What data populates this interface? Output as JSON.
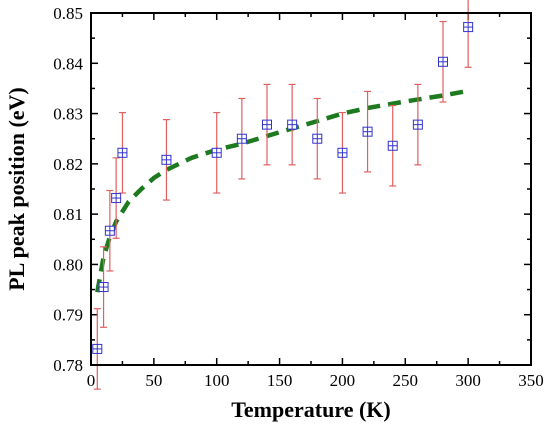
{
  "chart_data": {
    "type": "scatter",
    "title": "",
    "xlabel": "Temperature (K)",
    "ylabel": "PL peak position (eV)",
    "xlim": [
      0,
      350
    ],
    "ylim": [
      0.78,
      0.85
    ],
    "xticks": [
      "0",
      "50",
      "100",
      "150",
      "200",
      "250",
      "300",
      "350"
    ],
    "yticks": [
      "0.78",
      "0.79",
      "0.80",
      "0.81",
      "0.82",
      "0.83",
      "0.84",
      "0.85"
    ],
    "grid": false,
    "legend": "none",
    "colors": {
      "marker": "#3333cc",
      "errorbar": "#e06060",
      "fit": "#1e7a1e"
    },
    "series": [
      {
        "type": "scatter",
        "marker": "boxed-plus",
        "points": [
          {
            "x": 5,
            "y": 0.7832,
            "err": 0.008
          },
          {
            "x": 10,
            "y": 0.7955,
            "err": 0.008
          },
          {
            "x": 15,
            "y": 0.8067,
            "err": 0.008
          },
          {
            "x": 20,
            "y": 0.8132,
            "err": 0.008
          },
          {
            "x": 25,
            "y": 0.8222,
            "err": 0.008
          },
          {
            "x": 60,
            "y": 0.8208,
            "err": 0.008
          },
          {
            "x": 100,
            "y": 0.8222,
            "err": 0.008
          },
          {
            "x": 120,
            "y": 0.825,
            "err": 0.008
          },
          {
            "x": 140,
            "y": 0.8278,
            "err": 0.008
          },
          {
            "x": 160,
            "y": 0.8278,
            "err": 0.008
          },
          {
            "x": 180,
            "y": 0.825,
            "err": 0.008
          },
          {
            "x": 200,
            "y": 0.8222,
            "err": 0.008
          },
          {
            "x": 220,
            "y": 0.8264,
            "err": 0.008
          },
          {
            "x": 240,
            "y": 0.8236,
            "err": 0.008
          },
          {
            "x": 260,
            "y": 0.8278,
            "err": 0.008
          },
          {
            "x": 280,
            "y": 0.8403,
            "err": 0.008
          },
          {
            "x": 300,
            "y": 0.8472,
            "err": 0.008
          }
        ]
      },
      {
        "type": "line",
        "style": "dashed",
        "x": [
          5,
          10,
          15,
          20,
          30,
          40,
          50,
          60,
          80,
          100,
          120,
          150,
          180,
          200,
          220,
          250,
          280,
          300
        ],
        "y": [
          0.7945,
          0.8015,
          0.8055,
          0.8085,
          0.8125,
          0.815,
          0.8172,
          0.8188,
          0.8212,
          0.8228,
          0.824,
          0.8263,
          0.8285,
          0.83,
          0.8311,
          0.8324,
          0.8336,
          0.8345
        ]
      }
    ]
  }
}
